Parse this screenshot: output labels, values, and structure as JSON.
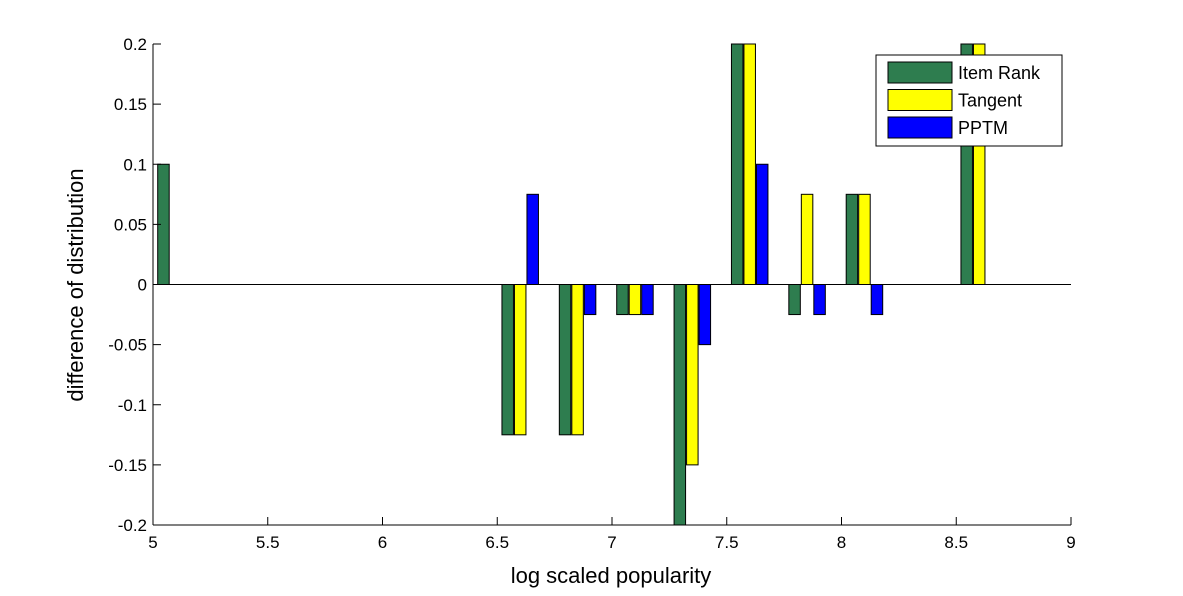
{
  "chart_data": {
    "type": "bar",
    "title": "",
    "xlabel": "log scaled popularity",
    "ylabel": "difference of distribution",
    "xlim": [
      5,
      9
    ],
    "ylim": [
      -0.2,
      0.2
    ],
    "xticks": [
      "5",
      "5.5",
      "6",
      "6.5",
      "7",
      "7.5",
      "8",
      "8.5",
      "9"
    ],
    "yticks": [
      "0.2",
      "0.15",
      "0.1",
      "0.05",
      "0",
      "-0.05",
      "-0.1",
      "-0.15",
      "-0.2"
    ],
    "grid": false,
    "legend_position": "top-right",
    "bin_centers": [
      5.1,
      6.6,
      6.85,
      7.1,
      7.35,
      7.6,
      7.85,
      8.1,
      8.6
    ],
    "series": [
      {
        "name": "Item Rank",
        "color": "#2e7d4f",
        "values": [
          0.1,
          -0.125,
          -0.125,
          -0.025,
          -0.2,
          0.2,
          -0.025,
          0.075,
          0.2
        ]
      },
      {
        "name": "Tangent",
        "color": "#ffff00",
        "values": [
          0,
          -0.125,
          -0.125,
          -0.025,
          -0.15,
          0.2,
          0.075,
          0.075,
          0.2
        ]
      },
      {
        "name": "PPTM",
        "color": "#0000ff",
        "values": [
          0,
          0.075,
          -0.025,
          -0.025,
          -0.05,
          0.1,
          -0.025,
          -0.025,
          0
        ]
      }
    ]
  }
}
